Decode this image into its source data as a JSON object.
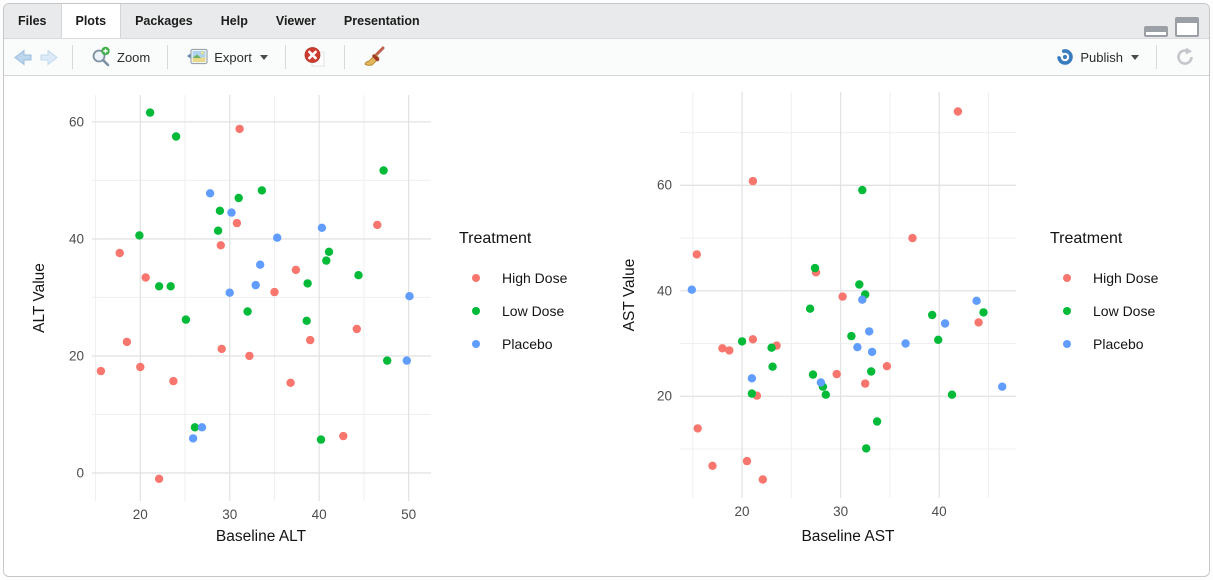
{
  "tabs": [
    {
      "label": "Files",
      "active": false
    },
    {
      "label": "Plots",
      "active": true
    },
    {
      "label": "Packages",
      "active": false
    },
    {
      "label": "Help",
      "active": false
    },
    {
      "label": "Viewer",
      "active": false
    },
    {
      "label": "Presentation",
      "active": false
    }
  ],
  "toolbar": {
    "zoom_label": "Zoom",
    "export_label": "Export",
    "publish_label": "Publish",
    "icons": [
      "back-icon",
      "forward-icon",
      "zoom-magnifier-icon",
      "export-image-icon",
      "remove-plot-icon",
      "clear-all-broom-icon",
      "publish-icon",
      "refresh-icon"
    ]
  },
  "window_controls": {
    "minimize": "minimize-pane",
    "maximize": "maximize-pane"
  },
  "colors": {
    "high_dose": "#F8766D",
    "low_dose": "#00BA38",
    "placebo": "#619CFF",
    "grid_major": "#e3e3e3",
    "grid_minor": "#efefef"
  },
  "chart_data": [
    {
      "type": "scatter",
      "xlabel": "Baseline ALT",
      "ylabel": "ALT Value",
      "legend_title": "Treatment",
      "legend_position": "right",
      "grid": true,
      "xlim": [
        14.6,
        52.5
      ],
      "ylim": [
        -4.8,
        64.6
      ],
      "x_major_ticks": [
        20,
        30,
        40,
        50
      ],
      "x_minor_ticks": [
        15,
        25,
        35,
        45
      ],
      "y_major_ticks": [
        0,
        20,
        40,
        60
      ],
      "y_minor_ticks": [
        10,
        30,
        50
      ],
      "series": [
        {
          "name": "High Dose",
          "color": "#F8766D",
          "points": [
            [
              31.1,
              58.8
            ],
            [
              30.8,
              42.7
            ],
            [
              29,
              38.9
            ],
            [
              17.7,
              37.6
            ],
            [
              20.6,
              33.4
            ],
            [
              35,
              30.9
            ],
            [
              37.4,
              34.7
            ],
            [
              18.5,
              22.4
            ],
            [
              29.1,
              21.2
            ],
            [
              39,
              22.7
            ],
            [
              32.2,
              20
            ],
            [
              15.6,
              17.4
            ],
            [
              20,
              18.1
            ],
            [
              23.7,
              15.7
            ],
            [
              36.8,
              15.4
            ],
            [
              22.1,
              -1
            ],
            [
              46.5,
              42.4
            ],
            [
              44.2,
              24.6
            ],
            [
              42.7,
              6.3
            ]
          ]
        },
        {
          "name": "Low Dose",
          "color": "#00BA38",
          "points": [
            [
              21.1,
              61.6
            ],
            [
              24,
              57.5
            ],
            [
              31,
              47
            ],
            [
              33.6,
              48.3
            ],
            [
              28.9,
              44.8
            ],
            [
              28.7,
              41.4
            ],
            [
              19.9,
              40.6
            ],
            [
              22.1,
              31.9
            ],
            [
              23.4,
              31.9
            ],
            [
              38.7,
              32.4
            ],
            [
              32,
              27.6
            ],
            [
              25.1,
              26.2
            ],
            [
              38.6,
              26
            ],
            [
              26.1,
              7.8
            ],
            [
              40.2,
              5.7
            ],
            [
              47.2,
              51.7
            ],
            [
              41.1,
              37.8
            ],
            [
              40.8,
              36.3
            ],
            [
              44.4,
              33.8
            ],
            [
              47.6,
              19.2
            ]
          ]
        },
        {
          "name": "Placebo",
          "color": "#619CFF",
          "points": [
            [
              27.8,
              47.8
            ],
            [
              30.2,
              44.5
            ],
            [
              35.3,
              40.2
            ],
            [
              40.3,
              41.9
            ],
            [
              33.4,
              35.6
            ],
            [
              32.9,
              32.1
            ],
            [
              30,
              30.8
            ],
            [
              26.9,
              7.8
            ],
            [
              25.9,
              5.9
            ],
            [
              50.1,
              30.2
            ],
            [
              49.8,
              19.2
            ]
          ]
        }
      ]
    },
    {
      "type": "scatter",
      "xlabel": "Baseline AST",
      "ylabel": "AST Value",
      "legend_title": "Treatment",
      "legend_position": "right",
      "grid": true,
      "xlim": [
        13.7,
        47.8
      ],
      "ylim": [
        0.7,
        77.7
      ],
      "x_major_ticks": [
        20,
        30,
        40
      ],
      "x_minor_ticks": [
        15,
        25,
        35,
        45
      ],
      "y_major_ticks": [
        20,
        40,
        60
      ],
      "y_minor_ticks": [
        10,
        30,
        50,
        70
      ],
      "series": [
        {
          "name": "High Dose",
          "color": "#F8766D",
          "points": [
            [
              21.1,
              60.8
            ],
            [
              15.4,
              46.9
            ],
            [
              27.5,
              43.5
            ],
            [
              30.2,
              38.9
            ],
            [
              41.9,
              74
            ],
            [
              37.3,
              50
            ],
            [
              44,
              34
            ],
            [
              34.7,
              25.7
            ],
            [
              29.6,
              24.2
            ],
            [
              32.5,
              22.4
            ],
            [
              18,
              29.1
            ],
            [
              18.7,
              28.7
            ],
            [
              21.1,
              30.8
            ],
            [
              23.5,
              29.6
            ],
            [
              21.5,
              20.1
            ],
            [
              15.5,
              13.9
            ],
            [
              17,
              6.8
            ],
            [
              20.5,
              7.7
            ],
            [
              22.1,
              4.2
            ]
          ]
        },
        {
          "name": "Low Dose",
          "color": "#00BA38",
          "points": [
            [
              27.4,
              44.3
            ],
            [
              26.9,
              36.6
            ],
            [
              32.2,
              59.1
            ],
            [
              31.9,
              41.2
            ],
            [
              32.5,
              39.3
            ],
            [
              44.5,
              35.9
            ],
            [
              39.3,
              35.4
            ],
            [
              39.9,
              30.7
            ],
            [
              31.1,
              31.4
            ],
            [
              33.1,
              24.7
            ],
            [
              41.3,
              20.3
            ],
            [
              33.7,
              15.2
            ],
            [
              32.6,
              10.1
            ],
            [
              20,
              30.4
            ],
            [
              23,
              29.2
            ],
            [
              23.1,
              25.6
            ],
            [
              21,
              20.5
            ],
            [
              27.2,
              24.1
            ],
            [
              28.2,
              21.8
            ],
            [
              28.5,
              20.3
            ]
          ]
        },
        {
          "name": "Placebo",
          "color": "#619CFF",
          "points": [
            [
              14.9,
              40.2
            ],
            [
              43.8,
              38.1
            ],
            [
              40.6,
              33.8
            ],
            [
              32.9,
              32.3
            ],
            [
              36.6,
              30
            ],
            [
              31.7,
              29.3
            ],
            [
              33.2,
              28.4
            ],
            [
              46.4,
              21.8
            ],
            [
              21,
              23.4
            ],
            [
              28,
              22.6
            ],
            [
              32.2,
              38.3
            ]
          ]
        }
      ]
    }
  ]
}
